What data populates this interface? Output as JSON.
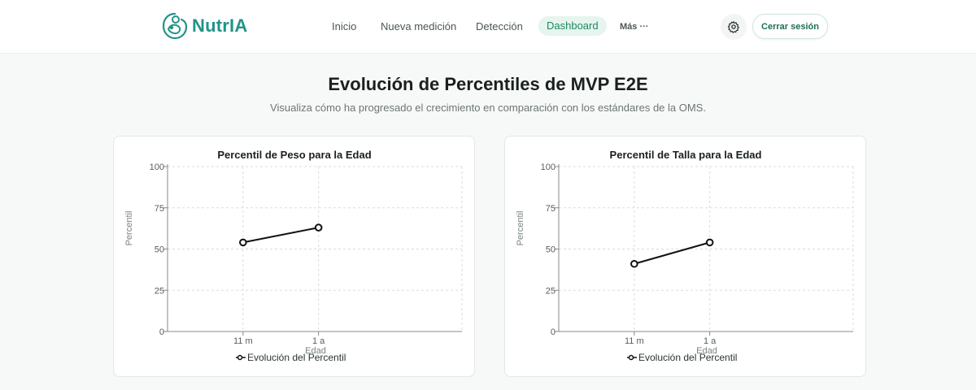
{
  "navbar": {
    "brand": "NutrIA",
    "links": [
      "Inicio",
      "Nueva medición",
      "Detección",
      "Dashboard",
      "Más ···"
    ],
    "active_link": "Dashboard",
    "settings_icon": "gear-icon",
    "logout_label": "Cerrar sesión"
  },
  "page": {
    "title": "Evolución de Percentiles de MVP E2E",
    "subtitle": "Visualiza cómo ha progresado el crecimiento en comparación con los estándares de la OMS."
  },
  "colors": {
    "brand": "#23938a",
    "active_nav_bg": "#e6f5ef",
    "active_nav_text": "#1d8a60",
    "line": "#111111"
  },
  "chart_data": [
    {
      "type": "line",
      "title": "Percentil de Peso para la Edad",
      "xlabel": "Edad",
      "ylabel": "Percentil",
      "categories": [
        "11 m",
        "1 a"
      ],
      "yticks": [
        0,
        25,
        50,
        75,
        100
      ],
      "ylim": [
        0,
        100
      ],
      "grid": true,
      "legend_position": "bottom",
      "series": [
        {
          "name": "Evolución del Percentil",
          "values": [
            54,
            63
          ]
        }
      ]
    },
    {
      "type": "line",
      "title": "Percentil de Talla para la Edad",
      "xlabel": "Edad",
      "ylabel": "Percentil",
      "categories": [
        "11 m",
        "1 a"
      ],
      "yticks": [
        0,
        25,
        50,
        75,
        100
      ],
      "ylim": [
        0,
        100
      ],
      "grid": true,
      "legend_position": "bottom",
      "series": [
        {
          "name": "Evolución del Percentil",
          "values": [
            41,
            54
          ]
        }
      ]
    }
  ]
}
